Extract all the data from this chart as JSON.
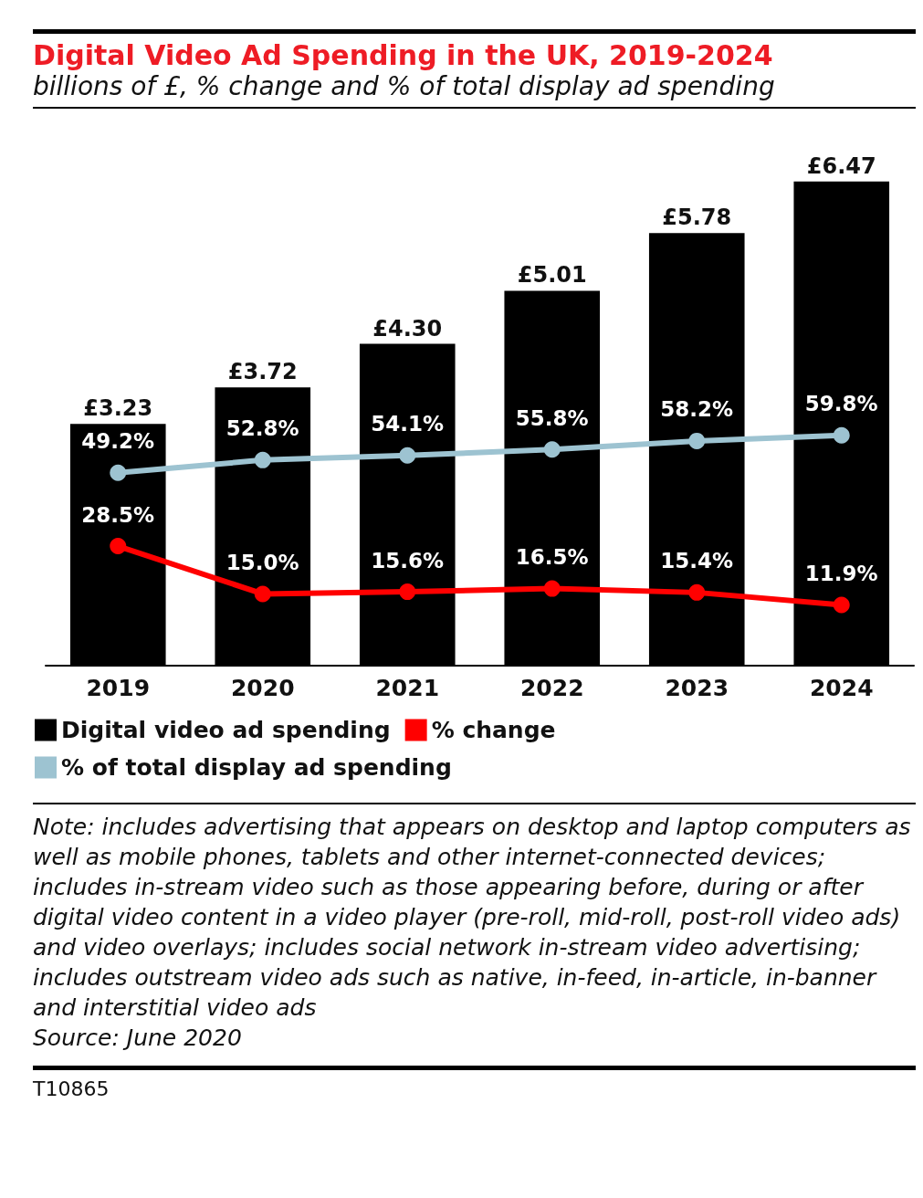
{
  "chart_data": {
    "type": "bar",
    "title": "Digital Video Ad Spending in the UK, 2019-2024",
    "subtitle": "billions of £, % change and % of total display ad spending",
    "categories": [
      "2019",
      "2020",
      "2021",
      "2022",
      "2023",
      "2024"
    ],
    "series": [
      {
        "name": "Digital video ad spending",
        "color": "#000000",
        "values": [
          3.23,
          3.72,
          4.3,
          5.01,
          5.78,
          6.47
        ],
        "value_labels": [
          "£3.23",
          "£3.72",
          "£4.30",
          "£5.01",
          "£5.78",
          "£6.47"
        ]
      },
      {
        "name": "% change",
        "type": "line",
        "axis": "y2",
        "color": "#ff0000",
        "values": [
          28.5,
          15.0,
          15.6,
          16.5,
          15.4,
          11.9
        ],
        "value_labels": [
          "28.5%",
          "15.0%",
          "15.6%",
          "16.5%",
          "15.4%",
          "11.9%"
        ]
      },
      {
        "name": "% of total display ad spending",
        "type": "line",
        "axis": "y2",
        "color": "#9dc3d1",
        "values": [
          49.2,
          52.8,
          54.1,
          55.8,
          58.2,
          59.8
        ],
        "value_labels": [
          "49.2%",
          "52.8%",
          "54.1%",
          "55.8%",
          "58.2%",
          "59.8%"
        ]
      }
    ],
    "legend": "bottom left",
    "marker": "circle",
    "tick_labels": "x",
    "annotations": [
      "Note: includes advertising that appears on desktop and laptop computers as well as mobile phones, tablets and other internet-connected devices; includes in-stream video such as those appearing before, during or after digital video content in a video player (pre-roll, mid-roll, post-roll video ads) and video overlays; includes social network in-stream video advertising; includes outstream video ads such as native, in-feed, in-article, in-banner and interstitial video ads",
      "Source: June 2020",
      "T10865"
    ]
  }
}
